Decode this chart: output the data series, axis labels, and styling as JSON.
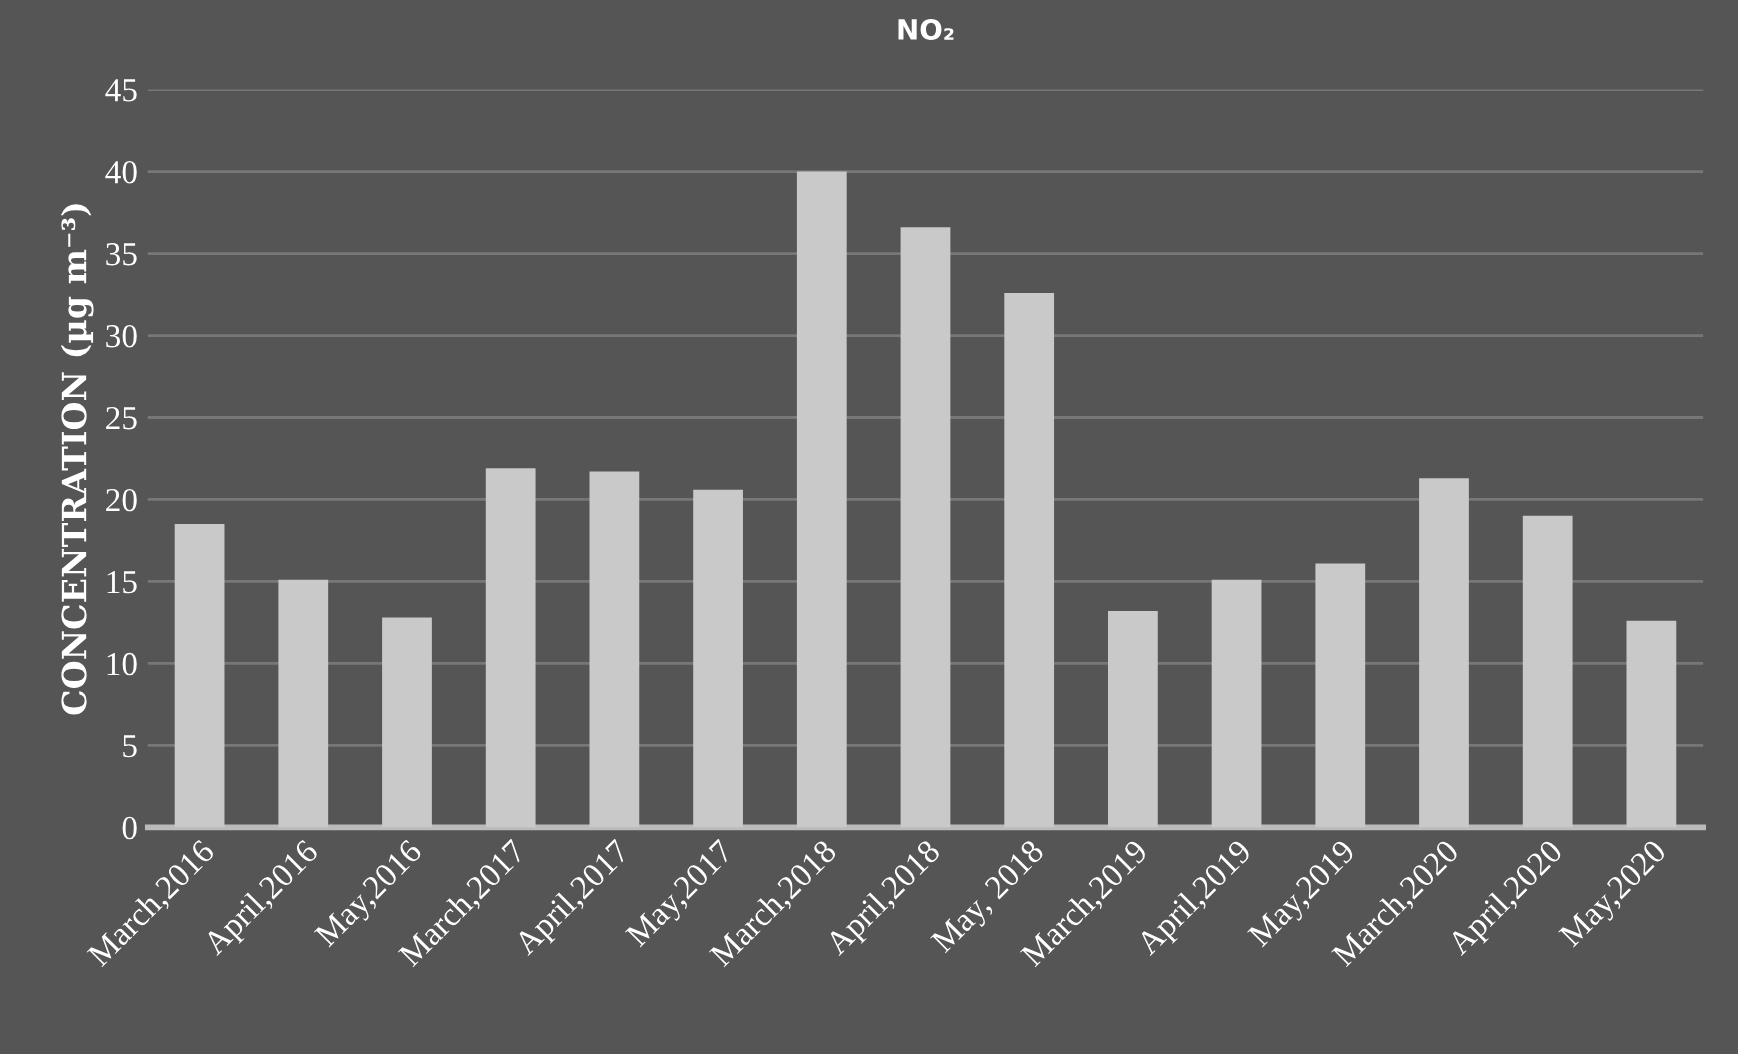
{
  "chart_data": {
    "type": "bar",
    "title": "NO₂",
    "ylabel": "CONCENTRATION (µg m⁻³)",
    "categories": [
      "March,2016",
      "April,2016",
      "May,2016",
      "March,2017",
      "April,2017",
      "May,2017",
      "March,2018",
      "April,2018",
      "May, 2018",
      "March,2019",
      "April,2019",
      "May,2019",
      "March,2020",
      "April,2020",
      "May,2020"
    ],
    "values": [
      18.5,
      15.1,
      12.8,
      21.9,
      21.7,
      20.6,
      40.0,
      36.6,
      32.6,
      13.2,
      15.1,
      16.1,
      21.3,
      19.0,
      12.6
    ],
    "color": "#c9c9c9",
    "ylim": [
      0,
      45
    ],
    "yticks": [
      0,
      5,
      10,
      15,
      20,
      25,
      30,
      35,
      40,
      45
    ],
    "grid": "y",
    "legend": false
  }
}
